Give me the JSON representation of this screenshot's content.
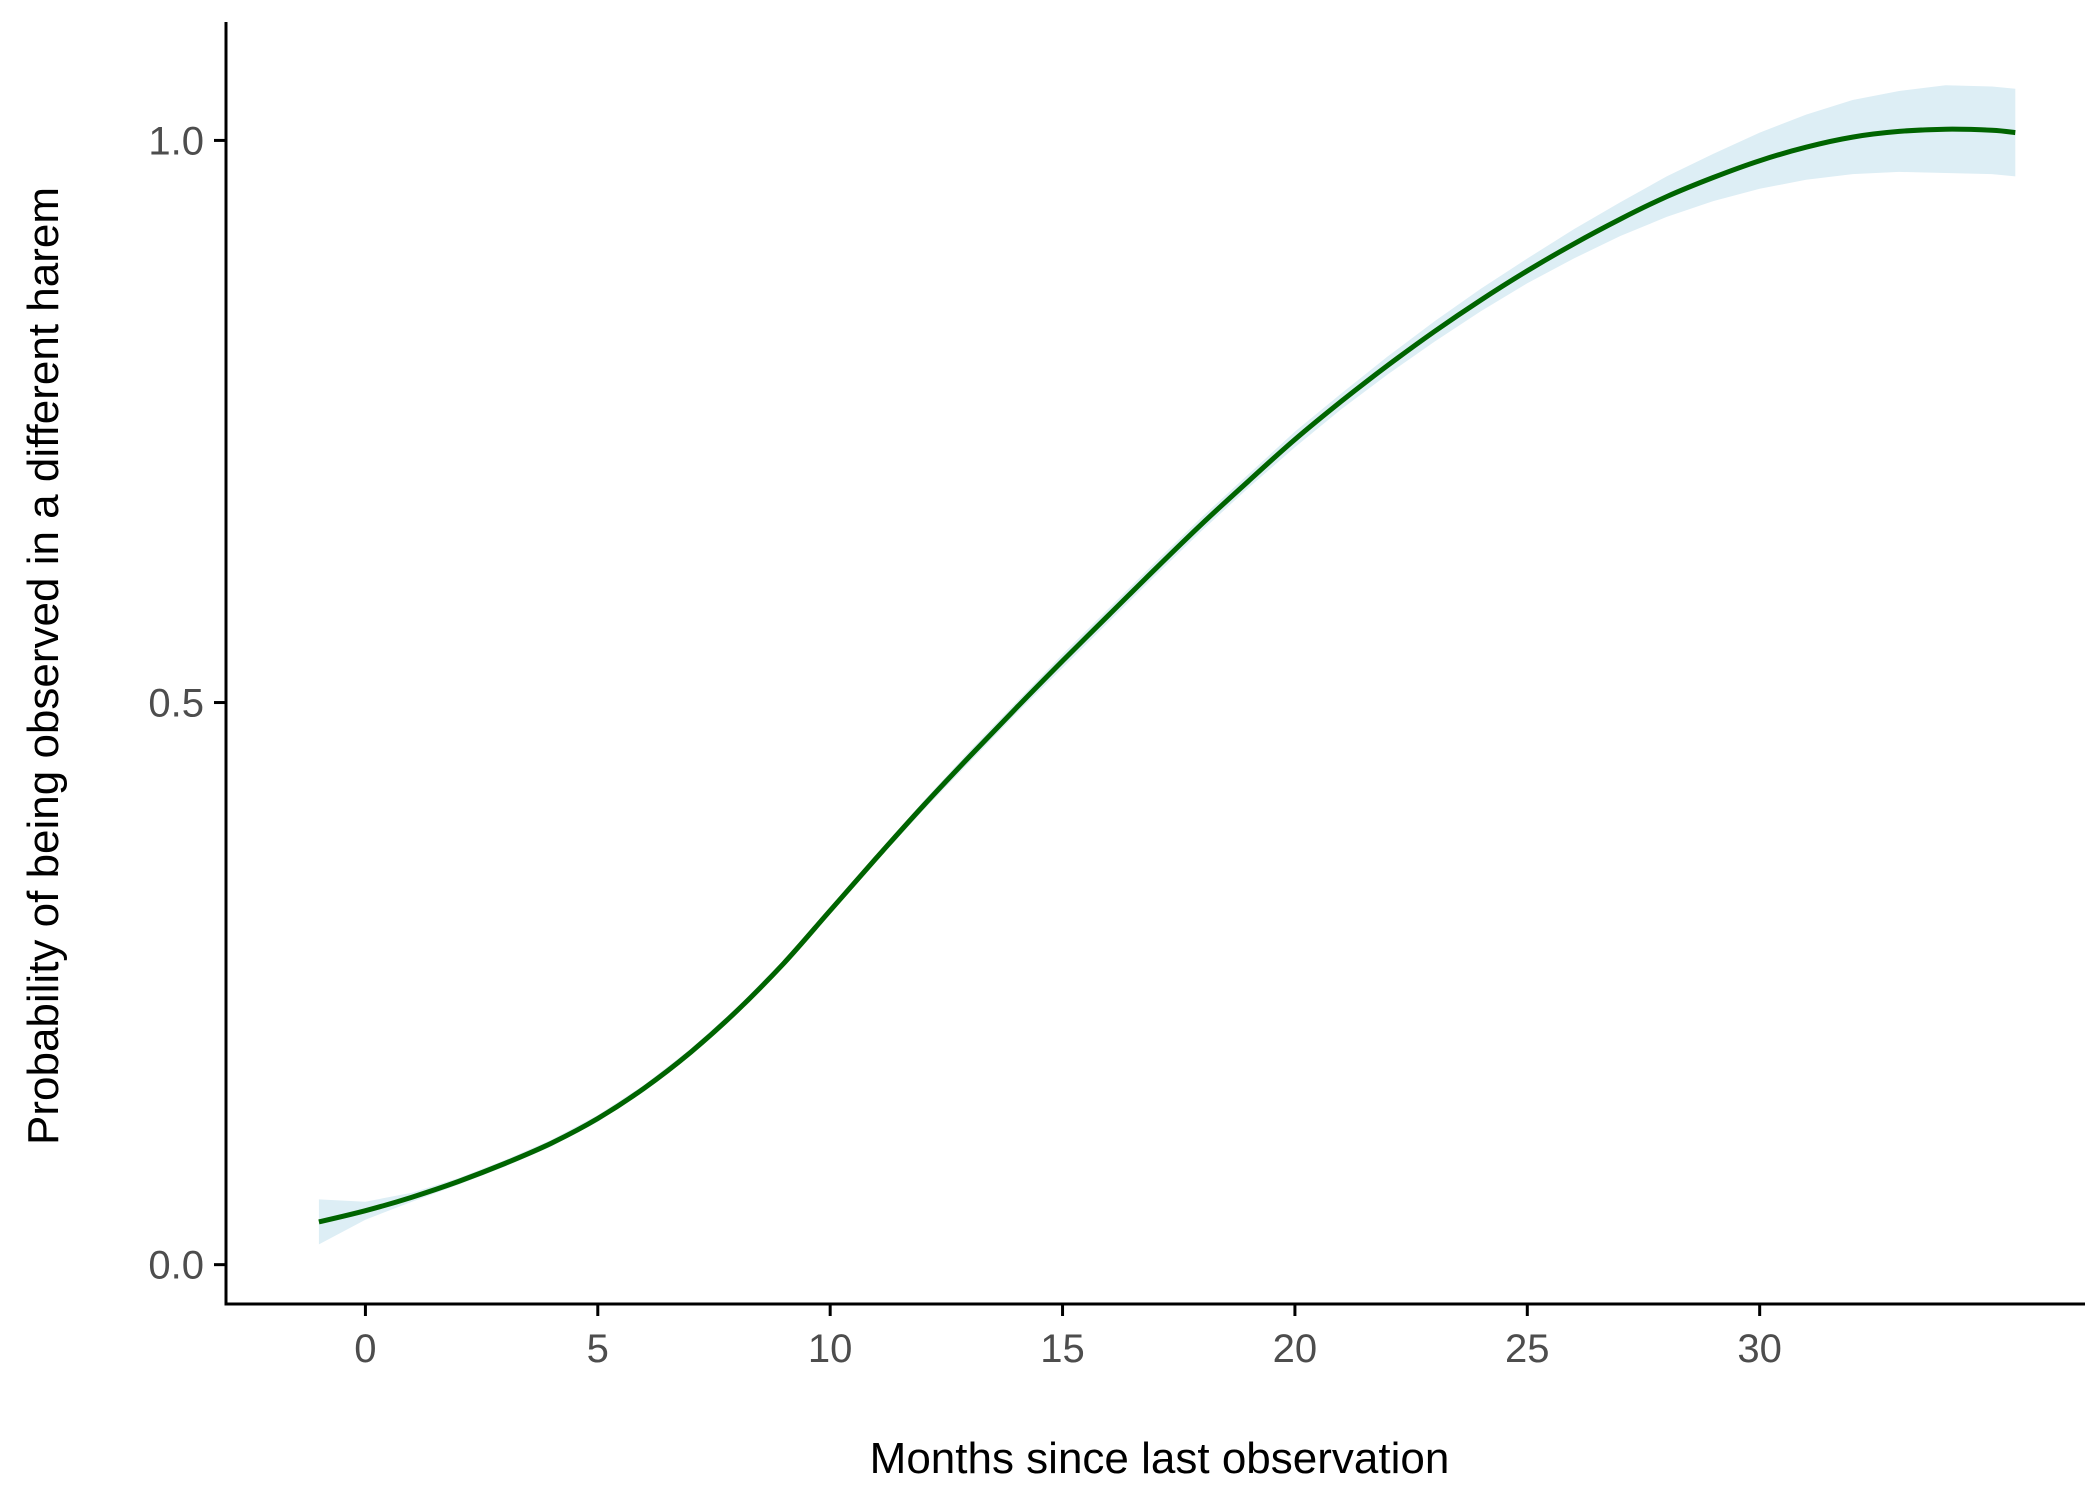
{
  "chart_data": {
    "type": "line",
    "title": "",
    "xlabel": "Months since last observation",
    "ylabel": "Probability of being observed in a different harem",
    "xlim": [
      -3,
      37
    ],
    "ylim": [
      -0.035,
      1.1
    ],
    "x_ticks": [
      0,
      5,
      10,
      15,
      20,
      25,
      30
    ],
    "y_ticks": [
      0.0,
      0.5,
      1.0
    ],
    "x_tick_labels": [
      "0",
      "5",
      "10",
      "15",
      "20",
      "25",
      "30"
    ],
    "y_tick_labels": [
      "0.0",
      "0.5",
      "1.0"
    ],
    "grid": false,
    "legend": "none",
    "colors": {
      "line": "#006400",
      "ribbon": "#ddeef5",
      "axis": "#000000"
    },
    "series": [
      {
        "kind": "fit_with_confidence_band",
        "x": [
          -1,
          0,
          1,
          2,
          3,
          4,
          5,
          6,
          7,
          8,
          9,
          10,
          11,
          12,
          13,
          14,
          15,
          16,
          17,
          18,
          19,
          20,
          21,
          22,
          23,
          24,
          25,
          26,
          27,
          28,
          29,
          30,
          31,
          32,
          33,
          34,
          35,
          35.5
        ],
        "y": [
          0.038,
          0.048,
          0.06,
          0.074,
          0.09,
          0.108,
          0.13,
          0.157,
          0.189,
          0.226,
          0.268,
          0.315,
          0.362,
          0.408,
          0.452,
          0.495,
          0.537,
          0.578,
          0.619,
          0.659,
          0.697,
          0.734,
          0.768,
          0.8,
          0.83,
          0.858,
          0.884,
          0.908,
          0.93,
          0.95,
          0.967,
          0.982,
          0.994,
          1.003,
          1.008,
          1.01,
          1.009,
          1.007
        ],
        "lower": [
          0.018,
          0.04,
          0.056,
          0.071,
          0.087,
          0.105,
          0.127,
          0.154,
          0.186,
          0.223,
          0.265,
          0.312,
          0.359,
          0.404,
          0.447,
          0.49,
          0.531,
          0.572,
          0.613,
          0.653,
          0.691,
          0.727,
          0.761,
          0.792,
          0.821,
          0.848,
          0.873,
          0.895,
          0.915,
          0.932,
          0.946,
          0.957,
          0.965,
          0.97,
          0.972,
          0.971,
          0.97,
          0.968
        ],
        "upper": [
          0.058,
          0.056,
          0.064,
          0.077,
          0.093,
          0.111,
          0.133,
          0.16,
          0.192,
          0.229,
          0.271,
          0.318,
          0.365,
          0.412,
          0.457,
          0.5,
          0.543,
          0.584,
          0.625,
          0.665,
          0.703,
          0.741,
          0.775,
          0.808,
          0.839,
          0.868,
          0.895,
          0.921,
          0.945,
          0.968,
          0.988,
          1.007,
          1.023,
          1.036,
          1.044,
          1.049,
          1.048,
          1.046
        ]
      }
    ]
  }
}
